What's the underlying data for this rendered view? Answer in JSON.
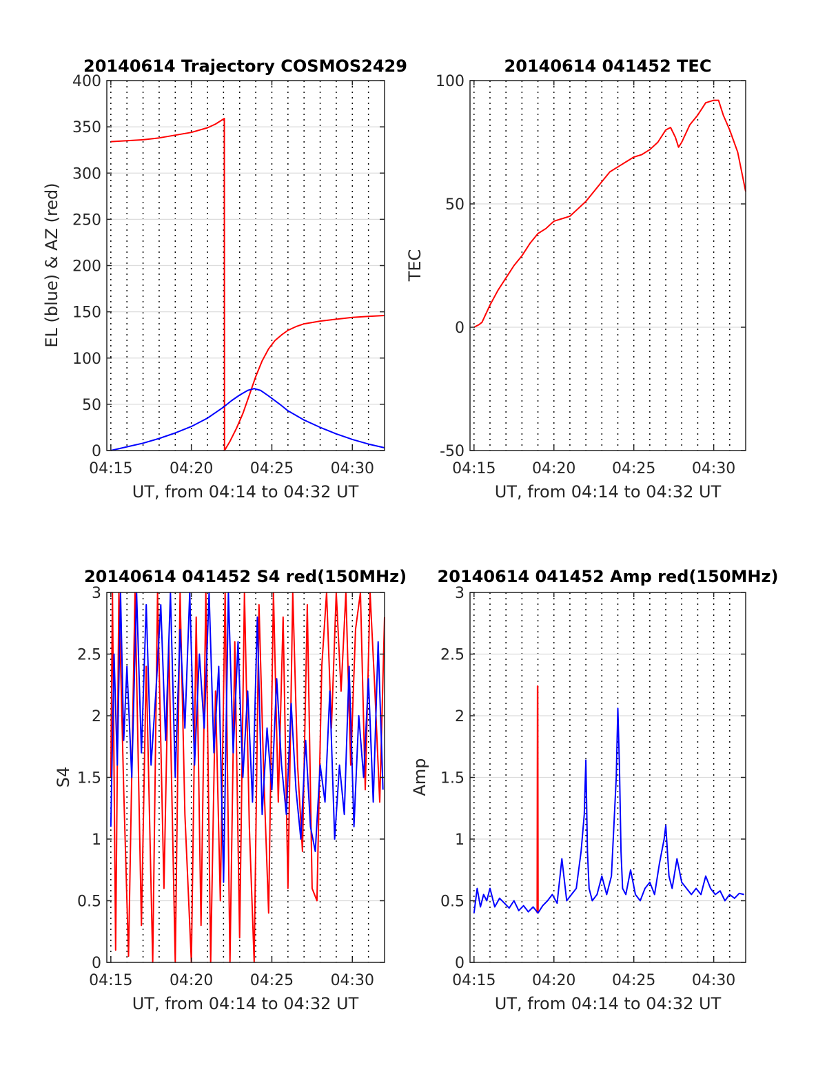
{
  "figure": {
    "colors": {
      "az": "#ff0000",
      "el": "#0000ff",
      "tec": "#ff0000",
      "s4_red": "#ff0000",
      "s4_blue": "#0000ff",
      "amp_red": "#ff0000",
      "amp_blue": "#0000ff"
    }
  },
  "chart_data": [
    {
      "id": "trajectory",
      "type": "line",
      "title": "20140614 Trajectory COSMOS2429",
      "xlabel": "UT, from 04:14 to 04:32 UT",
      "ylabel": "EL (blue) & AZ (red)",
      "xlim": [
        14.75,
        32
      ],
      "ylim": [
        0,
        400
      ],
      "xticks": [
        15,
        20,
        25,
        30
      ],
      "xtick_labels": [
        "04:15",
        "04:20",
        "04:25",
        "04:30"
      ],
      "yticks": [
        0,
        50,
        100,
        150,
        200,
        250,
        300,
        350,
        400
      ],
      "ytick_labels": [
        "0",
        "50",
        "100",
        "150",
        "200",
        "250",
        "300",
        "350",
        "400"
      ],
      "vlines": [
        15,
        16,
        17,
        18,
        19,
        20,
        21,
        22,
        23,
        24,
        25,
        26,
        27,
        28,
        29,
        30,
        31
      ],
      "grid": true,
      "series": [
        {
          "color_key": "az",
          "x": [
            15.0,
            16.0,
            17.0,
            18.0,
            19.0,
            20.0,
            21.0,
            21.5,
            22.05,
            22.06,
            22.4,
            22.8,
            23.2,
            23.6,
            24.0,
            24.4,
            24.8,
            25.2,
            25.6,
            26.0,
            26.5,
            27.0,
            28.0,
            29.0,
            30.0,
            31.0,
            32.0
          ],
          "y": [
            334,
            335,
            336,
            338,
            341,
            344,
            349,
            353,
            359,
            0,
            10,
            24,
            40,
            60,
            80,
            97,
            110,
            119,
            125,
            130,
            134,
            137,
            140,
            142,
            144,
            145,
            146
          ]
        },
        {
          "color_key": "el",
          "x": [
            15.0,
            16.0,
            17.0,
            18.0,
            19.0,
            20.0,
            21.0,
            22.0,
            22.5,
            23.0,
            23.5,
            23.9,
            24.3,
            24.8,
            25.5,
            26.0,
            27.0,
            28.0,
            29.0,
            30.0,
            31.0,
            32.0
          ],
          "y": [
            0,
            4,
            8,
            13,
            19,
            26,
            35,
            47,
            54,
            60,
            65,
            67,
            65,
            59,
            50,
            43,
            33,
            25,
            18,
            12,
            7,
            3
          ]
        }
      ]
    },
    {
      "id": "tec",
      "type": "line",
      "title": "20140614 041452 TEC",
      "xlabel": "UT, from 04:14 to 04:32 UT",
      "ylabel": "TEC",
      "xlim": [
        14.75,
        32
      ],
      "ylim": [
        -50,
        100
      ],
      "xticks": [
        15,
        20,
        25,
        30
      ],
      "xtick_labels": [
        "04:15",
        "04:20",
        "04:25",
        "04:30"
      ],
      "yticks": [
        -50,
        0,
        50,
        100
      ],
      "ytick_labels": [
        "-50",
        "0",
        "50",
        "100"
      ],
      "vlines": [
        15,
        16,
        17,
        18,
        19,
        20,
        21,
        22,
        23,
        24,
        25,
        26,
        27,
        28,
        29,
        30,
        31
      ],
      "grid": true,
      "series": [
        {
          "color_key": "tec",
          "x": [
            15.0,
            15.3,
            15.5,
            16.0,
            16.5,
            17.0,
            17.5,
            18.0,
            18.5,
            19.0,
            19.5,
            20.0,
            20.5,
            21.0,
            21.5,
            22.0,
            22.5,
            23.0,
            23.5,
            24.0,
            24.5,
            25.0,
            25.5,
            26.0,
            26.5,
            27.0,
            27.3,
            27.6,
            27.8,
            28.0,
            28.5,
            29.0,
            29.5,
            30.0,
            30.3,
            30.6,
            31.0,
            31.5,
            32.0
          ],
          "y": [
            0,
            1,
            2,
            9,
            15,
            20,
            25,
            29,
            34,
            38,
            40,
            43,
            44,
            45,
            48,
            51,
            55,
            59,
            63,
            65,
            67,
            69,
            70,
            72,
            75,
            80,
            81,
            77,
            73,
            75,
            82,
            86,
            91,
            92,
            92,
            86,
            80,
            71,
            55
          ]
        }
      ]
    },
    {
      "id": "s4",
      "type": "line",
      "title": "20140614 041452 S4 red(150MHz)",
      "xlabel": "UT, from 04:14 to 04:32 UT",
      "ylabel": "S4",
      "xlim": [
        14.75,
        32
      ],
      "ylim": [
        0,
        3
      ],
      "xticks": [
        15,
        20,
        25,
        30
      ],
      "xtick_labels": [
        "04:15",
        "04:20",
        "04:25",
        "04:30"
      ],
      "yticks": [
        0,
        0.5,
        1,
        1.5,
        2,
        2.5,
        3
      ],
      "ytick_labels": [
        "0",
        "0.5",
        "1",
        "1.5",
        "2",
        "2.5",
        "3"
      ],
      "vlines": [
        15,
        16,
        17,
        18,
        19,
        20,
        21,
        22,
        23,
        24,
        25,
        26,
        27,
        28,
        29,
        30,
        31
      ],
      "grid": true,
      "series": [
        {
          "color_key": "s4_red",
          "x": [
            15.0,
            15.1,
            15.3,
            15.5,
            15.8,
            16.1,
            16.5,
            16.9,
            17.2,
            17.6,
            17.9,
            18.3,
            18.6,
            19.0,
            19.3,
            19.6,
            20.0,
            20.3,
            20.6,
            20.9,
            21.2,
            21.5,
            21.8,
            22.1,
            22.4,
            22.7,
            23.0,
            23.3,
            23.6,
            23.9,
            24.2,
            24.5,
            24.8,
            25.1,
            25.4,
            25.7,
            26.0,
            26.3,
            26.6,
            26.9,
            27.2,
            27.5,
            27.8,
            28.1,
            28.4,
            28.7,
            29.0,
            29.3,
            29.6,
            29.9,
            30.2,
            30.5,
            30.8,
            31.1,
            31.4,
            31.7,
            32.0
          ],
          "y": [
            1.5,
            3.0,
            0.1,
            3.0,
            1.4,
            0.05,
            3.0,
            0.3,
            2.4,
            0.0,
            3.0,
            0.6,
            2.6,
            0.0,
            3.0,
            1.2,
            0.0,
            2.8,
            0.3,
            3.0,
            0.0,
            2.2,
            0.5,
            3.0,
            0.0,
            2.6,
            0.2,
            3.0,
            1.1,
            0.0,
            2.9,
            1.5,
            0.4,
            3.0,
            1.3,
            2.8,
            0.6,
            3.0,
            1.6,
            0.9,
            2.9,
            0.6,
            0.5,
            2.4,
            3.0,
            1.9,
            3.0,
            2.2,
            3.0,
            1.6,
            2.7,
            3.0,
            1.4,
            3.0,
            2.2,
            1.3,
            2.8
          ]
        },
        {
          "color_key": "s4_blue",
          "x": [
            15.0,
            15.2,
            15.4,
            15.6,
            15.8,
            16.0,
            16.3,
            16.6,
            16.9,
            17.2,
            17.5,
            17.8,
            18.1,
            18.4,
            18.7,
            19.0,
            19.3,
            19.6,
            19.9,
            20.2,
            20.5,
            20.8,
            21.1,
            21.4,
            21.7,
            22.0,
            22.3,
            22.6,
            22.9,
            23.2,
            23.5,
            23.8,
            24.1,
            24.4,
            24.7,
            25.0,
            25.3,
            25.6,
            25.9,
            26.2,
            26.5,
            26.8,
            27.1,
            27.4,
            27.7,
            28.0,
            28.3,
            28.6,
            28.9,
            29.2,
            29.5,
            29.8,
            30.1,
            30.4,
            30.7,
            31.0,
            31.3,
            31.6,
            31.9
          ],
          "y": [
            1.1,
            2.5,
            1.6,
            3.0,
            1.8,
            2.4,
            1.5,
            3.0,
            1.7,
            2.9,
            1.6,
            2.2,
            2.9,
            1.8,
            3.0,
            1.5,
            2.7,
            1.9,
            3.0,
            1.6,
            2.5,
            1.9,
            3.0,
            1.7,
            2.4,
            0.65,
            3.0,
            1.7,
            2.6,
            1.5,
            2.2,
            1.3,
            2.8,
            1.2,
            1.9,
            1.4,
            2.3,
            1.6,
            1.2,
            2.1,
            1.4,
            1.0,
            1.8,
            1.1,
            0.9,
            1.6,
            1.3,
            2.2,
            1.0,
            1.6,
            1.2,
            2.4,
            1.1,
            2.0,
            1.5,
            2.3,
            1.3,
            2.6,
            1.4
          ]
        }
      ]
    },
    {
      "id": "amp",
      "type": "line",
      "title": "20140614 041452 Amp red(150MHz)",
      "xlabel": "UT, from 04:14 to 04:32 UT",
      "ylabel": "Amp",
      "xlim": [
        14.75,
        32
      ],
      "ylim": [
        0,
        3
      ],
      "xticks": [
        15,
        20,
        25,
        30
      ],
      "xtick_labels": [
        "04:15",
        "04:20",
        "04:25",
        "04:30"
      ],
      "yticks": [
        0,
        0.5,
        1,
        1.5,
        2,
        2.5,
        3
      ],
      "ytick_labels": [
        "0",
        "0.5",
        "1",
        "1.5",
        "2",
        "2.5",
        "3"
      ],
      "vlines": [
        15,
        16,
        17,
        18,
        19,
        20,
        21,
        22,
        23,
        24,
        25,
        26,
        27,
        28,
        29,
        30,
        31
      ],
      "grid": true,
      "series": [
        {
          "color_key": "amp_red",
          "x": [
            18.95,
            18.97,
            18.99,
            19.01
          ],
          "y": [
            0.4,
            2.24,
            2.24,
            0.4
          ]
        },
        {
          "color_key": "amp_blue",
          "x": [
            15.0,
            15.2,
            15.4,
            15.6,
            15.8,
            16.0,
            16.3,
            16.6,
            16.9,
            17.2,
            17.5,
            17.8,
            18.1,
            18.4,
            18.7,
            19.0,
            19.3,
            19.6,
            19.9,
            20.2,
            20.5,
            20.8,
            21.1,
            21.4,
            21.7,
            21.9,
            22.0,
            22.1,
            22.2,
            22.4,
            22.7,
            23.0,
            23.3,
            23.6,
            23.9,
            24.0,
            24.1,
            24.2,
            24.3,
            24.5,
            24.8,
            25.1,
            25.4,
            25.7,
            26.0,
            26.3,
            26.6,
            26.9,
            27.0,
            27.1,
            27.2,
            27.4,
            27.7,
            28.0,
            28.3,
            28.6,
            28.9,
            29.2,
            29.5,
            29.8,
            30.1,
            30.4,
            30.7,
            31.0,
            31.3,
            31.6,
            31.9
          ],
          "y": [
            0.4,
            0.6,
            0.45,
            0.55,
            0.5,
            0.6,
            0.45,
            0.52,
            0.48,
            0.44,
            0.5,
            0.42,
            0.46,
            0.41,
            0.45,
            0.4,
            0.46,
            0.5,
            0.55,
            0.48,
            0.84,
            0.5,
            0.55,
            0.6,
            0.9,
            1.2,
            1.64,
            0.9,
            0.6,
            0.5,
            0.55,
            0.7,
            0.55,
            0.7,
            1.5,
            2.06,
            1.6,
            0.9,
            0.6,
            0.55,
            0.75,
            0.55,
            0.5,
            0.6,
            0.65,
            0.55,
            0.8,
            1.0,
            1.11,
            0.9,
            0.7,
            0.6,
            0.84,
            0.65,
            0.6,
            0.55,
            0.6,
            0.55,
            0.7,
            0.6,
            0.55,
            0.58,
            0.5,
            0.55,
            0.52,
            0.56,
            0.55
          ]
        }
      ]
    }
  ]
}
